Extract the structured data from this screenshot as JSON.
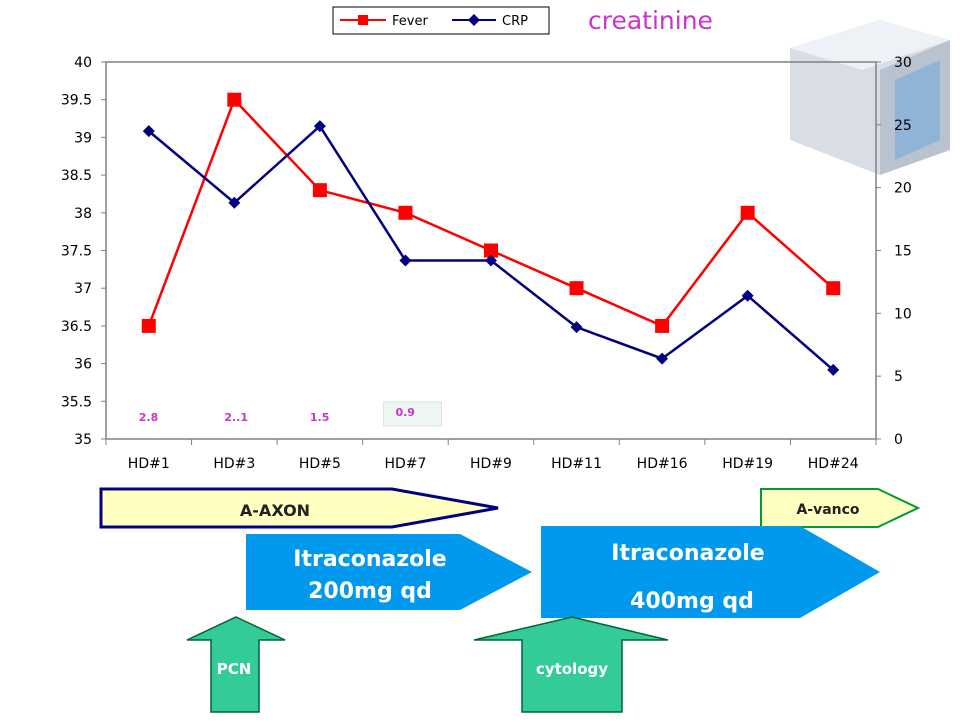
{
  "chart_data": {
    "type": "line",
    "categories": [
      "HD#1",
      "HD#3",
      "HD#5",
      "HD#7",
      "HD#9",
      "HD#11",
      "HD#16",
      "HD#19",
      "HD#24"
    ],
    "series": [
      {
        "name": "Fever",
        "axis": "left",
        "color": "#ff0000",
        "marker": "square",
        "values": [
          36.5,
          39.5,
          38.3,
          38.0,
          37.5,
          37.0,
          36.5,
          38.0,
          37.0
        ]
      },
      {
        "name": "CRP",
        "axis": "right",
        "color": "#000080",
        "marker": "diamond",
        "values": [
          24.5,
          18.8,
          24.9,
          14.2,
          14.2,
          8.9,
          6.4,
          11.4,
          5.5
        ]
      }
    ],
    "y_left": {
      "min": 35,
      "max": 40,
      "ticks": [
        "35",
        "35.5",
        "36",
        "36.5",
        "37",
        "37.5",
        "38",
        "38.5",
        "39",
        "39.5",
        "40"
      ]
    },
    "y_right": {
      "min": 0,
      "max": 30,
      "ticks": [
        "0",
        "5",
        "10",
        "15",
        "20",
        "25",
        "30"
      ]
    },
    "legend_position": "top",
    "grid": false
  },
  "creatinine": {
    "label": "creatinine",
    "values": [
      {
        "category": "HD#1",
        "text": "2.8"
      },
      {
        "category": "HD#3",
        "text": "2..1"
      },
      {
        "category": "HD#5",
        "text": "1.5"
      },
      {
        "category": "HD#7",
        "text": "0.9"
      }
    ]
  },
  "treatments": {
    "a_axon": "A-AXON",
    "a_vanco": "A-vanco",
    "itra200_line1": "Itraconazole",
    "itra200_line2": "200mg qd",
    "itra400_line1": "Itraconazole",
    "itra400_line2": "400mg qd"
  },
  "events": {
    "pcn": "PCN",
    "cytology": "cytology"
  },
  "colors": {
    "fever": "#ff0000",
    "crp": "#000080",
    "creatinine": "#cc33cc",
    "antibiotic_fill": "#ffffc0",
    "antibiotic_border": "#000080",
    "vanco_fill": "#ffffc0",
    "vanco_border": "#009933",
    "itra_fill": "#0099ee",
    "itra_text": "#ffffff",
    "event_fill": "#33cc99",
    "event_text": "#ffffff"
  }
}
